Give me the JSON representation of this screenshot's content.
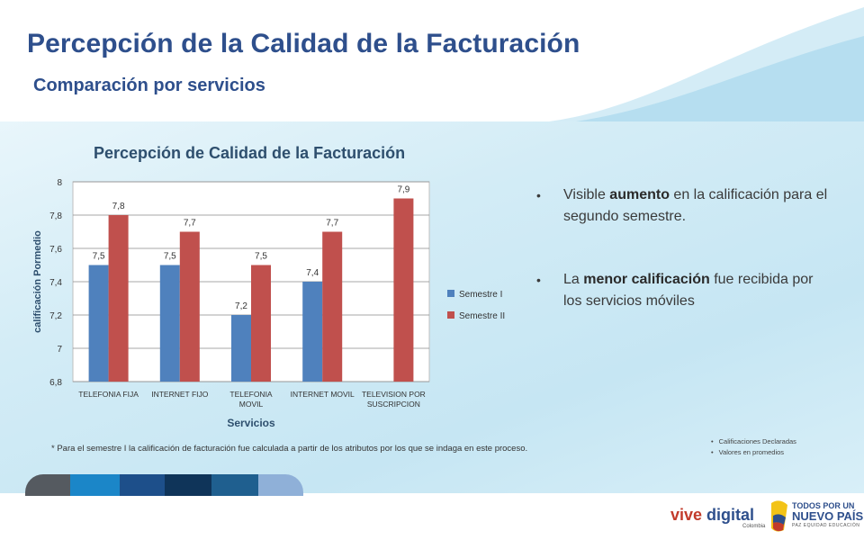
{
  "header": {
    "title": "Percepción de la Calidad de la Facturación",
    "subtitle": "Comparación por servicios"
  },
  "chart_data": {
    "type": "bar",
    "title": "Percepción de Calidad de la Facturación",
    "xlabel": "Servicios",
    "ylabel": "calificación Pormedio",
    "ylim": [
      6.8,
      8
    ],
    "yticks": [
      "6,8",
      "7",
      "7,2",
      "7,4",
      "7,6",
      "7,8",
      "8"
    ],
    "categories": [
      [
        "TELEFONIA FIJA"
      ],
      [
        "INTERNET FIJO"
      ],
      [
        "TELEFONIA",
        "MOVIL"
      ],
      [
        "INTERNET MOVIL"
      ],
      [
        "TELEVISION POR",
        "SUSCRIPCION"
      ]
    ],
    "series": [
      {
        "name": "Semestre I",
        "color": "#4f81bd",
        "values": [
          7.5,
          7.5,
          7.2,
          7.4,
          null
        ],
        "labels": [
          "7,5",
          "7,5",
          "7,2",
          "7,4",
          ""
        ]
      },
      {
        "name": "Semestre II",
        "color": "#c0504d",
        "values": [
          7.8,
          7.7,
          7.5,
          7.7,
          7.9
        ],
        "labels": [
          "7,8",
          "7,7",
          "7,5",
          "7,7",
          "7,9"
        ]
      }
    ],
    "legend": "right",
    "grid": true
  },
  "bullets": [
    {
      "pre": "Visible ",
      "bold": "aumento",
      "post": " en la calificación para el segundo semestre."
    },
    {
      "pre": "La ",
      "bold": "menor calificación",
      "post": " fue recibida por los servicios móviles"
    }
  ],
  "footnote": "* Para el semestre I  la calificación de  facturación fue calculada a partir de los atributos por los que se indaga en este proceso.",
  "notes": [
    "Calificaciones Declaradas",
    "Valores en promedios"
  ],
  "footer": {
    "stripe_colors": [
      "#555a60",
      "#1b86c8",
      "#1d4f8a",
      "#0f3459",
      "#1f5f8f",
      "#8fb0d8"
    ],
    "logo_left_a": "vive ",
    "logo_left_b": "digital",
    "logo_left_sub": "Colombia",
    "logo_right_l1": "TODOS POR UN",
    "logo_right_l2": "NUEVO PAÍS",
    "logo_right_l3": "PAZ   EQUIDAD   EDUCACIÓN"
  }
}
